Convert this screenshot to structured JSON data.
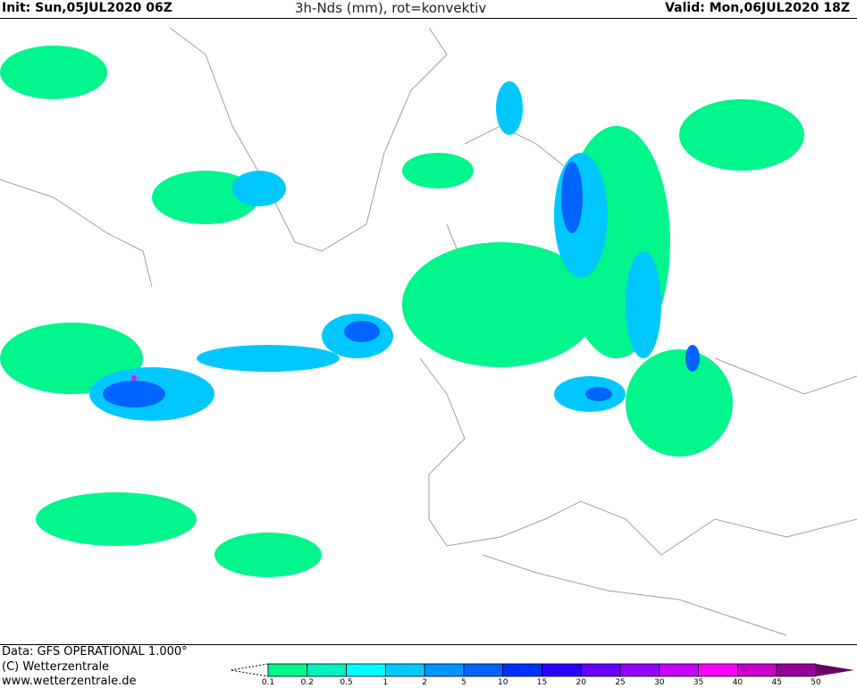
{
  "header": {
    "init": "Init: Sun,05JUL2020 06Z",
    "title": "3h-Nds (mm), rot=konvektiv",
    "valid": "Valid: Mon,06JUL2020 18Z"
  },
  "footer": {
    "data_source": "Data: GFS OPERATIONAL 1.000°",
    "copyright": "(C) Wetterzentrale",
    "url": "www.wetterzentrale.de"
  },
  "legend": {
    "unit": "mm",
    "levels": [
      "0.1",
      "0.2",
      "0.5",
      "1",
      "2",
      "5",
      "10",
      "15",
      "20",
      "25",
      "30",
      "35",
      "40",
      "45",
      "50"
    ],
    "colors": [
      "#00f58c",
      "#00f0c0",
      "#00ffff",
      "#00c8ff",
      "#0096ff",
      "#0064ff",
      "#0032ff",
      "#2800ff",
      "#6400ff",
      "#9600ff",
      "#c800ff",
      "#ff00ff",
      "#c800c8",
      "#960096"
    ],
    "overflow_color": "#640064"
  },
  "map": {
    "coastline_color": "#a0a0a0",
    "convective_marker_color": "#e08040"
  }
}
